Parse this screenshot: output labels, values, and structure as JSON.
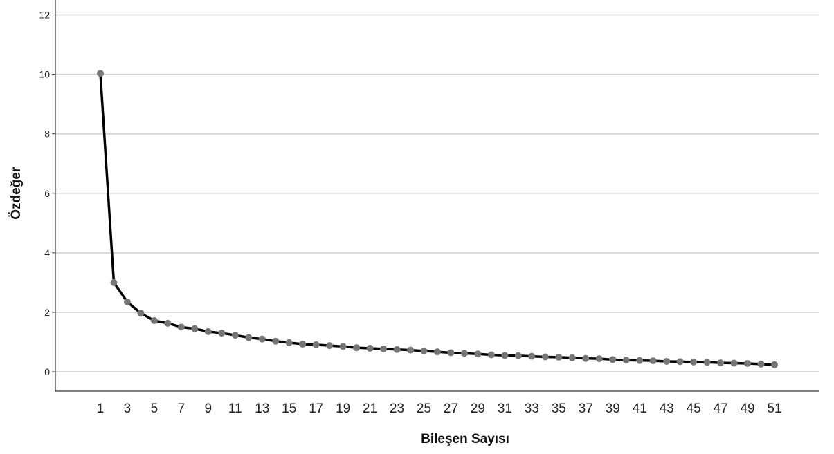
{
  "chart_data": {
    "type": "line",
    "title": "",
    "xlabel": "Bileşen Sayısı",
    "ylabel": "Özdeğer",
    "x": [
      1,
      2,
      3,
      4,
      5,
      6,
      7,
      8,
      9,
      10,
      11,
      12,
      13,
      14,
      15,
      16,
      17,
      18,
      19,
      20,
      21,
      22,
      23,
      24,
      25,
      26,
      27,
      28,
      29,
      30,
      31,
      32,
      33,
      34,
      35,
      36,
      37,
      38,
      39,
      40,
      41,
      42,
      43,
      44,
      45,
      46,
      47,
      48,
      49,
      50,
      51
    ],
    "x_tick_labels": [
      "1",
      "3",
      "5",
      "7",
      "9",
      "11",
      "13",
      "15",
      "17",
      "19",
      "21",
      "23",
      "25",
      "27",
      "29",
      "31",
      "33",
      "35",
      "37",
      "39",
      "41",
      "43",
      "45",
      "47",
      "49",
      "51"
    ],
    "y_ticks": [
      0,
      2,
      4,
      6,
      8,
      10,
      12
    ],
    "ylim": [
      -0.65,
      12.5
    ],
    "grid": true,
    "series": [
      {
        "values": [
          10.03,
          3.0,
          2.35,
          1.97,
          1.72,
          1.63,
          1.5,
          1.45,
          1.35,
          1.3,
          1.23,
          1.15,
          1.1,
          1.03,
          0.98,
          0.93,
          0.91,
          0.88,
          0.85,
          0.81,
          0.79,
          0.77,
          0.75,
          0.73,
          0.7,
          0.67,
          0.64,
          0.62,
          0.6,
          0.57,
          0.55,
          0.54,
          0.52,
          0.5,
          0.49,
          0.47,
          0.45,
          0.44,
          0.41,
          0.39,
          0.38,
          0.37,
          0.35,
          0.34,
          0.33,
          0.32,
          0.3,
          0.29,
          0.28,
          0.26,
          0.24
        ]
      }
    ],
    "colors": {
      "line": "#000000",
      "marker": "#777777",
      "grid": "#cfcfcf",
      "axis": "#333333"
    }
  }
}
